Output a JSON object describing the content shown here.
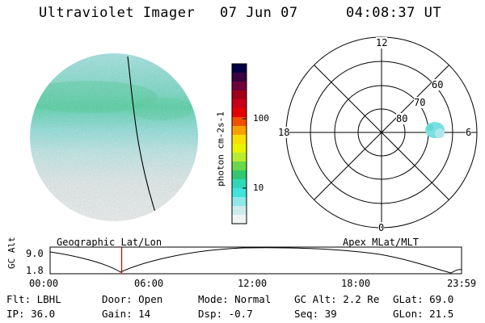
{
  "header": {
    "instrument": "Ultraviolet Imager",
    "date": "07 Jun 07",
    "time": "04:08:37 UT"
  },
  "colorbar": {
    "label": "photon cm-2s-1",
    "tick_100": "100",
    "tick_10": "10",
    "colors": [
      "#000044",
      "#3a0040",
      "#70003a",
      "#a00018",
      "#c80018",
      "#e40000",
      "#f05000",
      "#f8a000",
      "#f8e000",
      "#e8f400",
      "#b8ec30",
      "#6ad848",
      "#30c870",
      "#30d8b8",
      "#40e4dc",
      "#8ee8e8",
      "#ccecec",
      "#f0f4f4"
    ]
  },
  "polar": {
    "label_12": "12",
    "label_6": "6",
    "label_18": "18",
    "label_0": "0",
    "label_60": "60",
    "label_70": "70",
    "label_80": "80"
  },
  "strip": {
    "left_label": "Geographic Lat/Lon",
    "right_label": "Apex MLat/MLT",
    "y_axis_label": "GC Alt",
    "y_top": "9.0",
    "y_bottom": "1.8",
    "x_ticks": [
      "00:00",
      "06:00",
      "12:00",
      "18:00",
      "23:59"
    ],
    "current_time_fraction": 0.174
  },
  "status": {
    "filter": "Flt: LBHL",
    "ip": "IP: 36.0",
    "door": "Door: Open",
    "gain": "Gain: 14",
    "mode": "Mode: Normal",
    "dsp": "Dsp:   -0.7",
    "gc_alt": "GC Alt: 2.2 Re",
    "seq": "Seq: 39",
    "glat": "GLat:  69.0",
    "glon": "GLon:  21.5"
  }
}
